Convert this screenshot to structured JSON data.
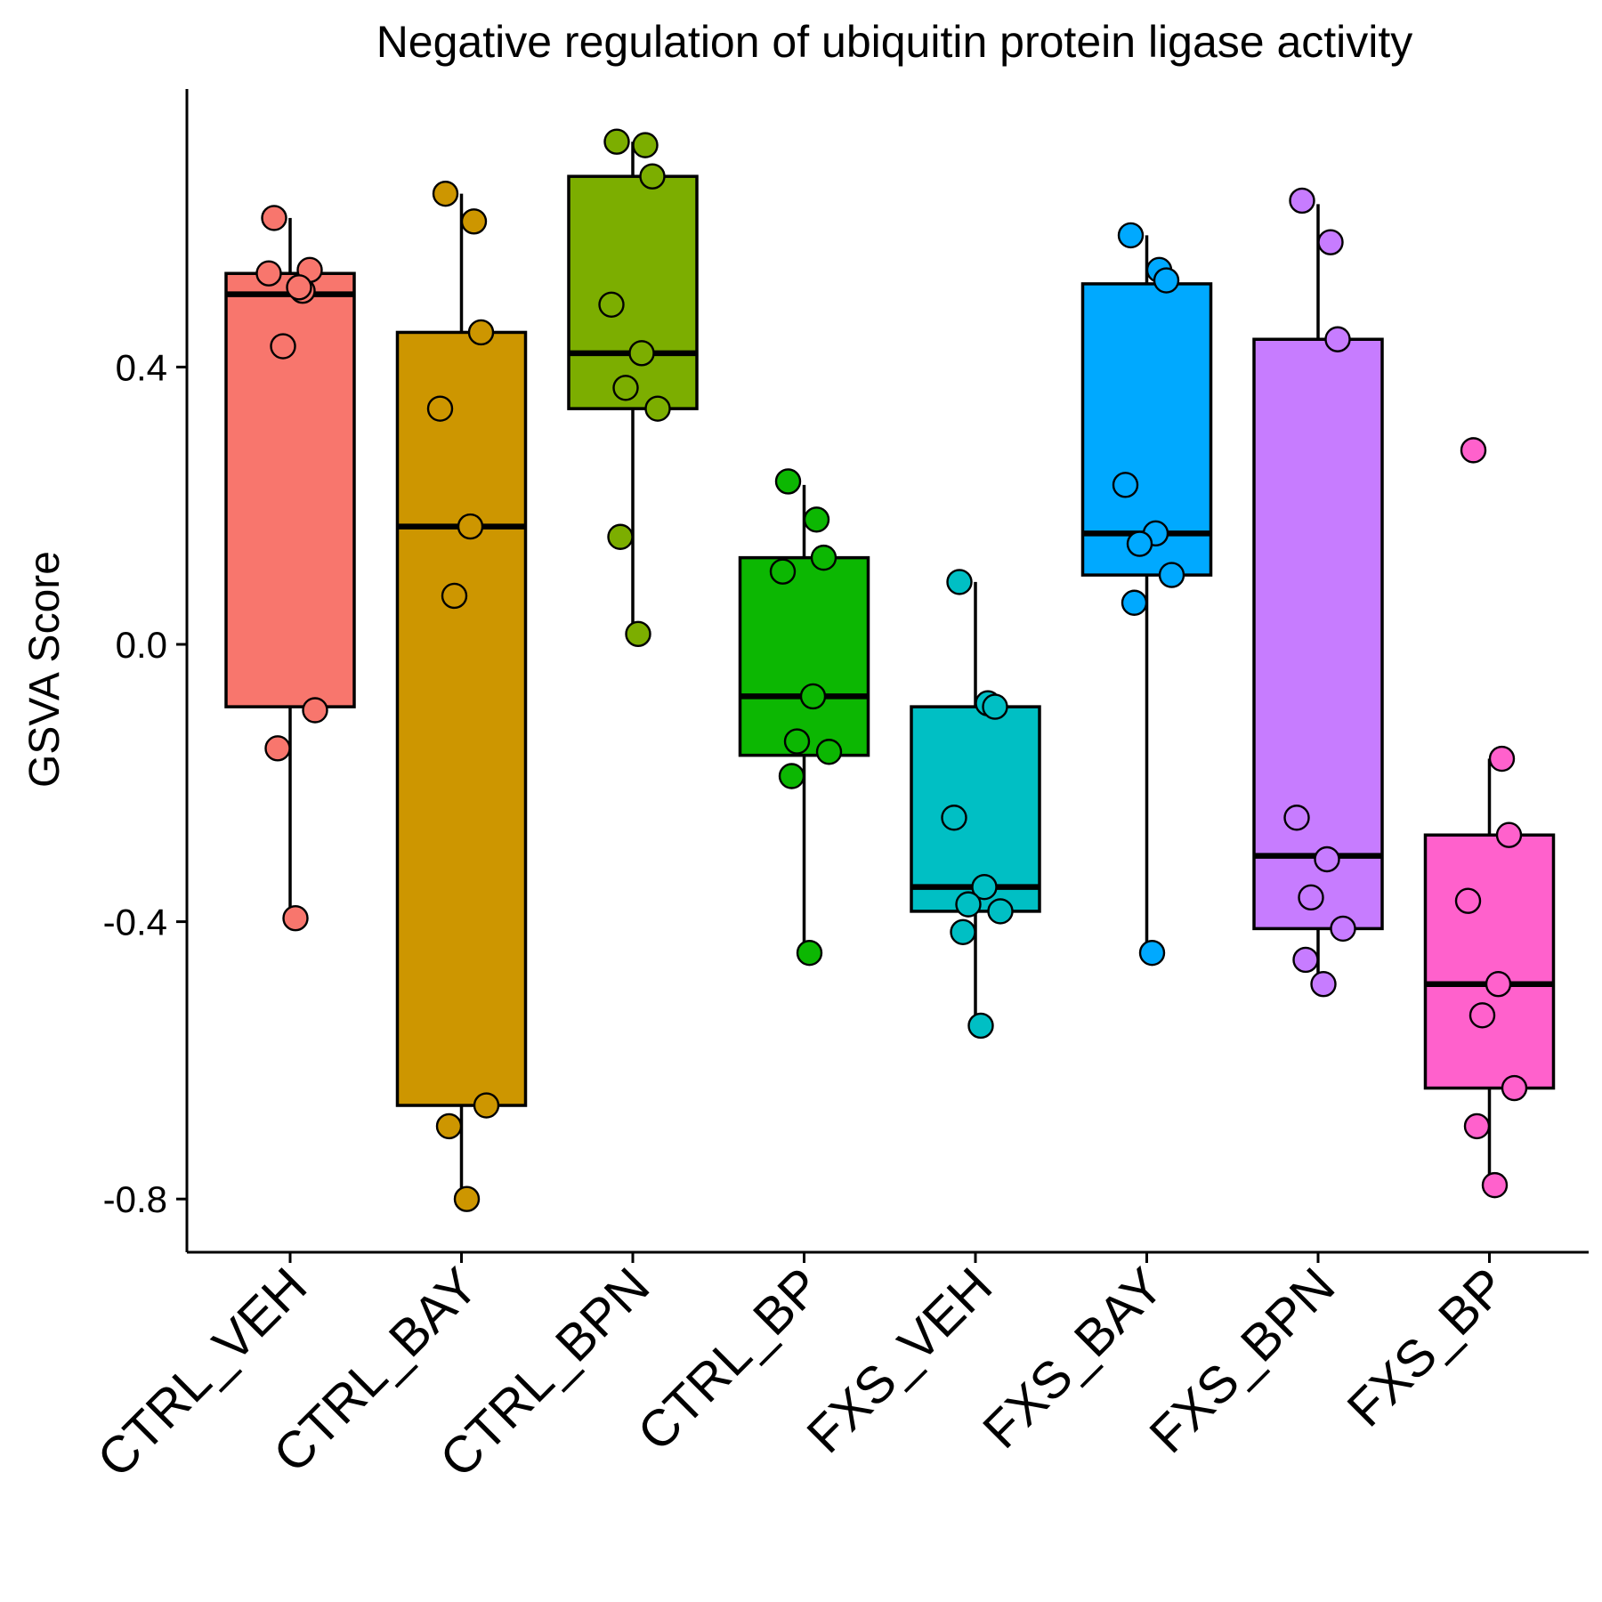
{
  "chart_data": {
    "type": "boxplot",
    "title": "Negative regulation of ubiquitin protein ligase activity",
    "xlabel": "",
    "ylabel": "GSVA Score",
    "ylim": [
      -0.87,
      0.8
    ],
    "yticks": [
      0.4,
      0.0,
      -0.4,
      -0.8
    ],
    "ytick_labels": [
      "0.4",
      "0.0",
      "-0.4",
      "-0.8"
    ],
    "grid": false,
    "legend": "none",
    "categories": [
      "CTRL_VEH",
      "CTRL_BAY",
      "CTRL_BPN",
      "CTRL_BP",
      "FXS_VEH",
      "FXS_BAY",
      "FXS_BPN",
      "FXS_BP"
    ],
    "groups": [
      {
        "name": "CTRL_VEH",
        "color": "#F8766D",
        "box": {
          "whisker_low": -0.39,
          "q1": -0.09,
          "median": 0.505,
          "q3": 0.535,
          "whisker_high": 0.615
        },
        "points": [
          0.615,
          0.51,
          0.54,
          0.535,
          0.515,
          0.43,
          -0.095,
          -0.15,
          -0.395
        ]
      },
      {
        "name": "CTRL_BAY",
        "color": "#CD9600",
        "box": {
          "whisker_low": -0.8,
          "q1": -0.665,
          "median": 0.17,
          "q3": 0.45,
          "whisker_high": 0.65
        },
        "points": [
          0.65,
          0.61,
          0.45,
          0.34,
          0.17,
          0.07,
          -0.665,
          -0.695,
          -0.8
        ]
      },
      {
        "name": "CTRL_BPN",
        "color": "#7CAE00",
        "box": {
          "whisker_low": 0.015,
          "q1": 0.34,
          "median": 0.42,
          "q3": 0.675,
          "whisker_high": 0.725
        },
        "points": [
          0.725,
          0.72,
          0.675,
          0.49,
          0.42,
          0.37,
          0.34,
          0.155,
          0.015
        ]
      },
      {
        "name": "CTRL_BP",
        "color": "#0CB702",
        "box": {
          "whisker_low": -0.445,
          "q1": -0.16,
          "median": -0.075,
          "q3": 0.125,
          "whisker_high": 0.23
        },
        "points": [
          0.235,
          0.18,
          0.125,
          0.105,
          -0.075,
          -0.14,
          -0.155,
          -0.19,
          -0.445
        ]
      },
      {
        "name": "FXS_VEH",
        "color": "#00BFC4",
        "box": {
          "whisker_low": -0.55,
          "q1": -0.385,
          "median": -0.35,
          "q3": -0.09,
          "whisker_high": 0.09
        },
        "points": [
          0.09,
          -0.085,
          -0.09,
          -0.25,
          -0.35,
          -0.375,
          -0.385,
          -0.415,
          -0.55
        ]
      },
      {
        "name": "FXS_BAY",
        "color": "#00A9FF",
        "box": {
          "whisker_low": -0.445,
          "q1": 0.1,
          "median": 0.16,
          "q3": 0.52,
          "whisker_high": 0.59
        },
        "points": [
          0.59,
          0.54,
          0.525,
          0.23,
          0.16,
          0.145,
          0.1,
          0.06,
          -0.445
        ]
      },
      {
        "name": "FXS_BPN",
        "color": "#C77CFF",
        "box": {
          "whisker_low": -0.485,
          "q1": -0.41,
          "median": -0.305,
          "q3": 0.44,
          "whisker_high": 0.635
        },
        "points": [
          0.64,
          0.58,
          0.44,
          -0.25,
          -0.31,
          -0.365,
          -0.41,
          -0.455,
          -0.49
        ]
      },
      {
        "name": "FXS_BP",
        "color": "#FF61CC",
        "box": {
          "whisker_low": -0.78,
          "q1": -0.64,
          "median": -0.49,
          "q3": -0.275,
          "whisker_high": -0.165
        },
        "points": [
          0.28,
          -0.165,
          -0.275,
          -0.37,
          -0.49,
          -0.535,
          -0.64,
          -0.695,
          -0.78
        ]
      }
    ]
  }
}
